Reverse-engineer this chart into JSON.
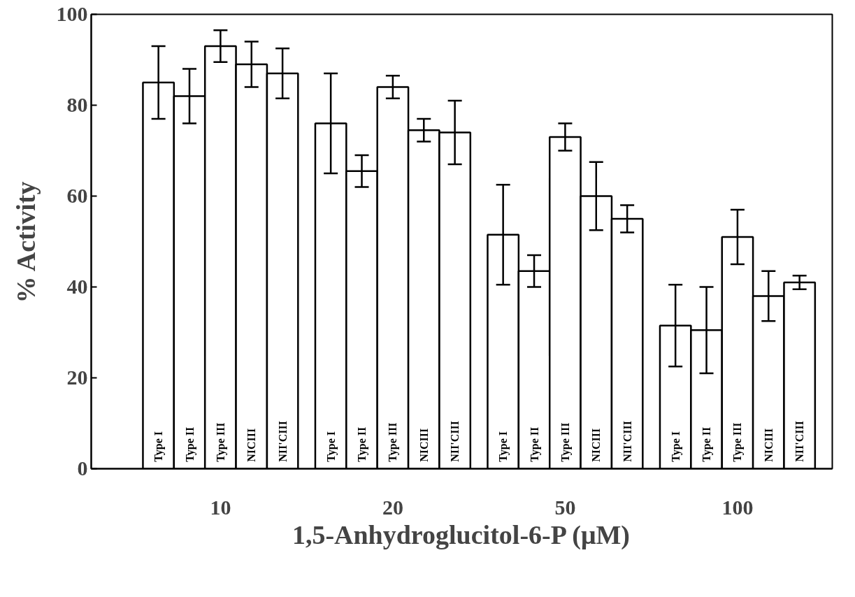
{
  "chart_data": {
    "type": "bar",
    "xlabel": "1,5-Anhydroglucitol-6-P (μM)",
    "ylabel": "% Activity",
    "categories": [
      "10",
      "20",
      "50",
      "100"
    ],
    "series": [
      {
        "name": "Type I",
        "color": "#ffffff",
        "values": [
          85,
          76,
          51.5,
          31.5
        ],
        "errors": [
          8,
          11,
          11,
          9
        ]
      },
      {
        "name": "Type II",
        "color": "#ffffff",
        "values": [
          82,
          65.5,
          43.5,
          30.5
        ],
        "errors": [
          6,
          3.5,
          3.5,
          9.5
        ]
      },
      {
        "name": "Type III",
        "color": "#ffffff",
        "values": [
          93,
          84,
          73,
          51
        ],
        "errors": [
          3.5,
          2.5,
          3,
          6
        ]
      },
      {
        "name": "NICIII",
        "color": "#ffffff",
        "values": [
          89,
          74.5,
          60,
          38
        ],
        "errors": [
          5,
          2.5,
          7.5,
          5.5
        ]
      },
      {
        "name": "NII'CIII",
        "color": "#ffffff",
        "values": [
          87,
          74,
          55,
          41
        ],
        "errors": [
          5.5,
          7,
          3,
          1.5
        ]
      }
    ],
    "ylim": [
      0,
      100
    ],
    "yticks": [
      0,
      20,
      40,
      60,
      80,
      100
    ],
    "grid": false,
    "legend": false
  }
}
